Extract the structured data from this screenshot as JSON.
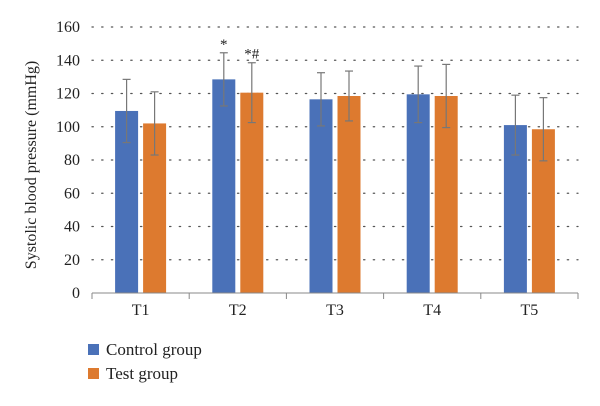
{
  "chart_data": {
    "type": "bar",
    "ylabel": "Systolic blood pressure (mmHg)",
    "xlabel": "",
    "categories": [
      "T1",
      "T2",
      "T3",
      "T4",
      "T5"
    ],
    "ylim": [
      0,
      160
    ],
    "yticks": [
      "0",
      "20",
      "40",
      "60",
      "80",
      "100",
      "120",
      "140",
      "160"
    ],
    "grid": "dotted horizontal",
    "legend_position": "bottom-left",
    "series": [
      {
        "name": "Control group",
        "color": "#4a71b8",
        "values": [
          109.5,
          128.5,
          116.5,
          119.5,
          101.0
        ],
        "error": [
          19,
          16,
          16,
          17,
          18
        ]
      },
      {
        "name": "Test group",
        "color": "#dd7a2f",
        "values": [
          102.0,
          120.5,
          118.5,
          118.5,
          98.5
        ],
        "error": [
          19,
          18,
          15,
          19,
          19
        ]
      }
    ],
    "annotations": [
      {
        "category": "T2",
        "series": 0,
        "text": "*"
      },
      {
        "category": "T2",
        "series": 1,
        "text": "*#"
      }
    ]
  }
}
